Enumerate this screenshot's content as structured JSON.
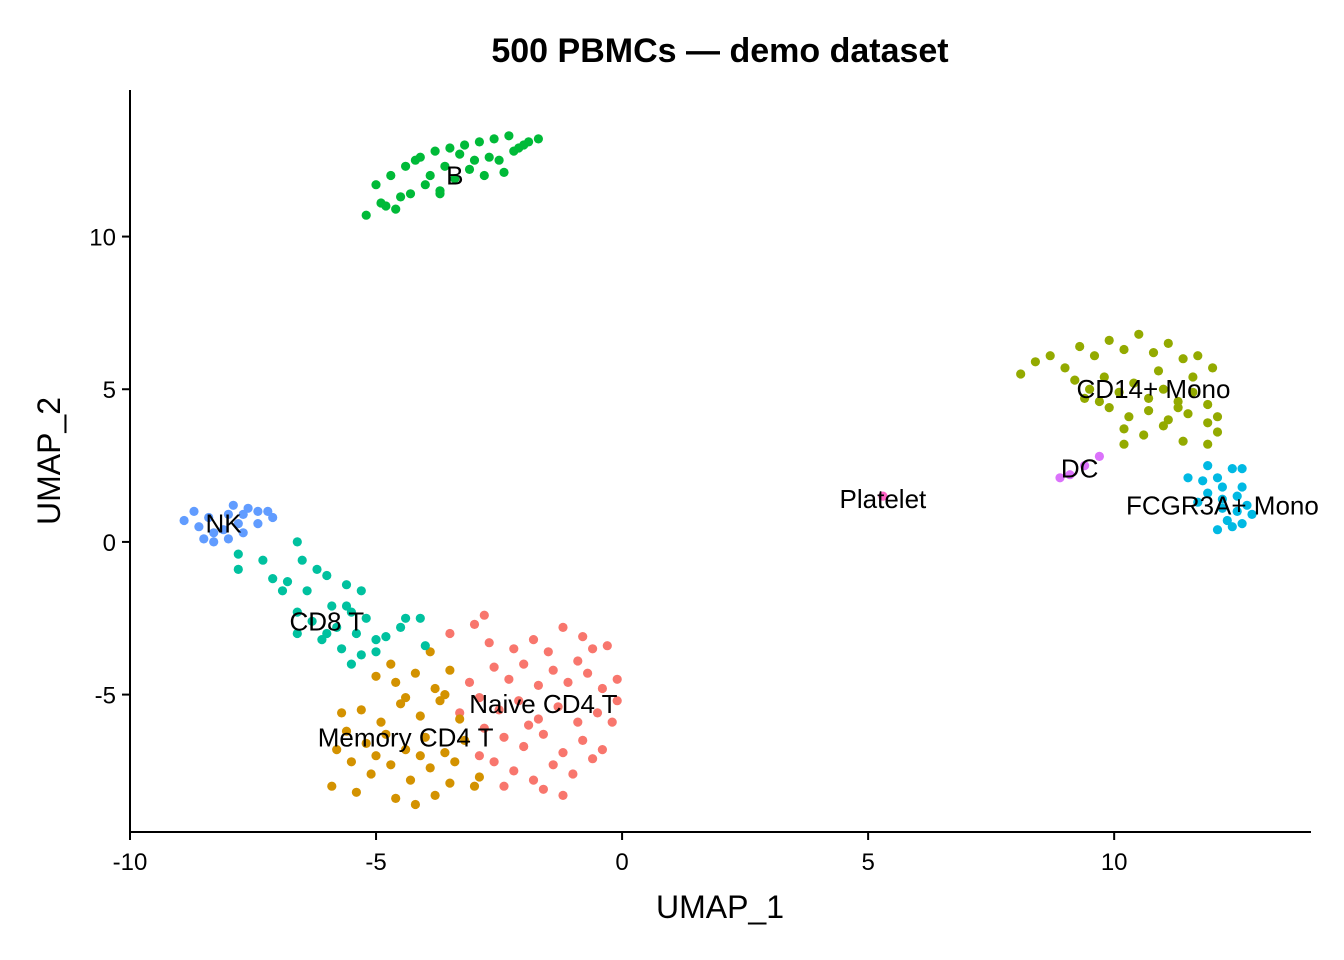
{
  "chart_data": {
    "type": "scatter",
    "title": "500 PBMCs — demo dataset",
    "xlabel": "UMAP_1",
    "ylabel": "UMAP_2",
    "xlim": [
      -10,
      14
    ],
    "ylim": [
      -9.5,
      14.8
    ],
    "xticks": [
      -10,
      -5,
      0,
      5,
      10
    ],
    "yticks": [
      -5,
      0,
      5,
      10
    ],
    "grid": false,
    "legend": "none",
    "series": [
      {
        "name": "Naive CD4 T",
        "color": "#F8766D",
        "label": {
          "text": "Naive CD4 T",
          "x": -1.6,
          "y": -5.3
        },
        "points": [
          [
            -3.5,
            -3
          ],
          [
            -3,
            -2.7
          ],
          [
            -2.8,
            -2.4
          ],
          [
            -2.2,
            -3.5
          ],
          [
            -1.8,
            -3.2
          ],
          [
            -1.5,
            -3.6
          ],
          [
            -1.2,
            -2.8
          ],
          [
            -0.8,
            -3.1
          ],
          [
            -0.6,
            -3.5
          ],
          [
            -0.3,
            -3.4
          ],
          [
            -2.6,
            -4.1
          ],
          [
            -2.3,
            -4.5
          ],
          [
            -2,
            -4
          ],
          [
            -1.7,
            -4.7
          ],
          [
            -1.4,
            -4.2
          ],
          [
            -1.1,
            -4.6
          ],
          [
            -0.7,
            -4.3
          ],
          [
            -0.4,
            -4.8
          ],
          [
            -0.1,
            -4.5
          ],
          [
            -2.9,
            -5.1
          ],
          [
            -2.5,
            -5.5
          ],
          [
            -2.1,
            -5.2
          ],
          [
            -1.7,
            -5.8
          ],
          [
            -1.3,
            -5.4
          ],
          [
            -0.9,
            -5.9
          ],
          [
            -0.5,
            -5.6
          ],
          [
            -0.1,
            -5.2
          ],
          [
            -2.8,
            -6.1
          ],
          [
            -2.4,
            -6.4
          ],
          [
            -2,
            -6.7
          ],
          [
            -1.6,
            -6.3
          ],
          [
            -1.2,
            -6.9
          ],
          [
            -0.8,
            -6.5
          ],
          [
            -0.4,
            -6.8
          ],
          [
            -2.6,
            -7.2
          ],
          [
            -2.2,
            -7.5
          ],
          [
            -1.8,
            -7.8
          ],
          [
            -1.4,
            -7.3
          ],
          [
            -1,
            -7.6
          ],
          [
            -0.6,
            -7.1
          ],
          [
            -1.6,
            -8.1
          ],
          [
            -1.2,
            -8.3
          ],
          [
            -2.4,
            -8.0
          ],
          [
            -2.9,
            -7.0
          ],
          [
            -3.1,
            -4.6
          ],
          [
            -3.3,
            -5.6
          ],
          [
            -2.7,
            -3.3
          ],
          [
            -0.2,
            -5.9
          ],
          [
            -0.9,
            -3.9
          ],
          [
            -1.9,
            -6.0
          ]
        ]
      },
      {
        "name": "Memory CD4 T",
        "color": "#D39200",
        "label": {
          "text": "Memory CD4 T",
          "x": -4.4,
          "y": -6.4
        },
        "points": [
          [
            -5,
            -4.4
          ],
          [
            -4.6,
            -4.6
          ],
          [
            -4.2,
            -4.3
          ],
          [
            -3.8,
            -4.8
          ],
          [
            -3.5,
            -4.2
          ],
          [
            -5.3,
            -5.5
          ],
          [
            -4.9,
            -5.9
          ],
          [
            -4.5,
            -5.3
          ],
          [
            -4.1,
            -5.7
          ],
          [
            -3.7,
            -5.2
          ],
          [
            -3.3,
            -5.8
          ],
          [
            -5.6,
            -6.2
          ],
          [
            -5.2,
            -6.6
          ],
          [
            -4.8,
            -6.3
          ],
          [
            -4.4,
            -6.8
          ],
          [
            -4,
            -6.4
          ],
          [
            -3.6,
            -6.9
          ],
          [
            -3.2,
            -6.5
          ],
          [
            -5.5,
            -7.2
          ],
          [
            -5.1,
            -7.6
          ],
          [
            -4.7,
            -7.3
          ],
          [
            -4.3,
            -7.8
          ],
          [
            -3.9,
            -7.4
          ],
          [
            -3.5,
            -7.9
          ],
          [
            -5.9,
            -8.0
          ],
          [
            -5.4,
            -8.2
          ],
          [
            -4.6,
            -8.4
          ],
          [
            -4.2,
            -8.6
          ],
          [
            -3.8,
            -8.3
          ],
          [
            -3.4,
            -7.2
          ],
          [
            -3,
            -8.0
          ],
          [
            -5.7,
            -5.6
          ],
          [
            -4.7,
            -4.0
          ],
          [
            -3.9,
            -3.6
          ],
          [
            -2.9,
            -7.7
          ],
          [
            -5.8,
            -6.8
          ],
          [
            -4.1,
            -7.0
          ],
          [
            -3.6,
            -5.0
          ],
          [
            -5.0,
            -7.0
          ],
          [
            -4.4,
            -5.1
          ]
        ]
      },
      {
        "name": "CD14+ Mono",
        "color": "#93AA00",
        "label": {
          "text": "CD14+ Mono",
          "x": 10.8,
          "y": 5.0
        },
        "points": [
          [
            8.1,
            5.5
          ],
          [
            8.4,
            5.9
          ],
          [
            8.7,
            6.1
          ],
          [
            9,
            5.7
          ],
          [
            9.3,
            6.4
          ],
          [
            9.6,
            6.1
          ],
          [
            9.9,
            6.6
          ],
          [
            10.2,
            6.3
          ],
          [
            10.5,
            6.8
          ],
          [
            10.8,
            6.2
          ],
          [
            11.1,
            6.5
          ],
          [
            11.4,
            6.0
          ],
          [
            11.7,
            6.1
          ],
          [
            12,
            5.7
          ],
          [
            9.2,
            5.3
          ],
          [
            9.5,
            5.0
          ],
          [
            9.8,
            5.4
          ],
          [
            10.1,
            4.9
          ],
          [
            10.4,
            5.2
          ],
          [
            10.7,
            4.7
          ],
          [
            11,
            5.0
          ],
          [
            11.3,
            4.6
          ],
          [
            11.6,
            4.9
          ],
          [
            11.9,
            4.5
          ],
          [
            9.4,
            4.7
          ],
          [
            9.9,
            4.4
          ],
          [
            10.3,
            4.1
          ],
          [
            10.7,
            4.3
          ],
          [
            11.1,
            4.0
          ],
          [
            11.5,
            4.2
          ],
          [
            11.9,
            3.9
          ],
          [
            10.2,
            3.7
          ],
          [
            10.6,
            3.5
          ],
          [
            11,
            3.8
          ],
          [
            11.4,
            3.3
          ],
          [
            11.9,
            3.2
          ],
          [
            12.1,
            3.6
          ],
          [
            10.2,
            3.2
          ],
          [
            11.3,
            4.4
          ],
          [
            9.7,
            4.6
          ],
          [
            10.9,
            5.6
          ],
          [
            11.6,
            5.4
          ],
          [
            12.1,
            4.1
          ]
        ]
      },
      {
        "name": "B",
        "color": "#00BA38",
        "label": {
          "text": "B",
          "x": -3.4,
          "y": 12.0
        },
        "points": [
          [
            -5.2,
            10.7
          ],
          [
            -4.9,
            11.1
          ],
          [
            -4.6,
            10.9
          ],
          [
            -4.3,
            11.4
          ],
          [
            -4,
            11.7
          ],
          [
            -3.7,
            11.4
          ],
          [
            -3.4,
            11.9
          ],
          [
            -3.1,
            12.2
          ],
          [
            -2.8,
            12.0
          ],
          [
            -2.5,
            12.5
          ],
          [
            -2.2,
            12.8
          ],
          [
            -1.9,
            13.1
          ],
          [
            -1.7,
            13.2
          ],
          [
            -5,
            11.7
          ],
          [
            -4.7,
            12.0
          ],
          [
            -4.4,
            12.3
          ],
          [
            -4.1,
            12.6
          ],
          [
            -3.8,
            12.8
          ],
          [
            -3.5,
            12.9
          ],
          [
            -3.2,
            13.0
          ],
          [
            -2.9,
            13.1
          ],
          [
            -2.6,
            13.2
          ],
          [
            -2.3,
            13.3
          ],
          [
            -2.1,
            12.9
          ],
          [
            -4.5,
            11.3
          ],
          [
            -3.6,
            12.3
          ],
          [
            -2.7,
            12.6
          ],
          [
            -4.8,
            11.0
          ],
          [
            -3.9,
            12.0
          ],
          [
            -3.0,
            12.5
          ],
          [
            -2.4,
            12.1
          ],
          [
            -3.7,
            11.5
          ],
          [
            -2.0,
            13.0
          ],
          [
            -4.2,
            12.5
          ],
          [
            -3.3,
            12.7
          ]
        ]
      },
      {
        "name": "CD8 T",
        "color": "#00C19F",
        "label": {
          "text": "CD8 T",
          "x": -6.0,
          "y": -2.6
        },
        "points": [
          [
            -7.8,
            -0.4
          ],
          [
            -7.3,
            -0.6
          ],
          [
            -7.8,
            -0.9
          ],
          [
            -6.6,
            0.0
          ],
          [
            -6.5,
            -0.6
          ],
          [
            -6.2,
            -0.9
          ],
          [
            -6.0,
            -1.1
          ],
          [
            -5.6,
            -1.4
          ],
          [
            -5.3,
            -1.6
          ],
          [
            -7.1,
            -1.2
          ],
          [
            -6.8,
            -1.3
          ],
          [
            -6.4,
            -1.6
          ],
          [
            -5.9,
            -2.1
          ],
          [
            -5.5,
            -2.3
          ],
          [
            -5.2,
            -2.5
          ],
          [
            -6.6,
            -2.3
          ],
          [
            -6.3,
            -2.6
          ],
          [
            -5.8,
            -2.8
          ],
          [
            -5.4,
            -3.0
          ],
          [
            -5.0,
            -3.2
          ],
          [
            -4.8,
            -3.1
          ],
          [
            -6.6,
            -3.0
          ],
          [
            -6.1,
            -3.2
          ],
          [
            -5.7,
            -3.5
          ],
          [
            -5.3,
            -3.7
          ],
          [
            -5.0,
            -3.6
          ],
          [
            -5.5,
            -4.0
          ],
          [
            -4.4,
            -2.5
          ],
          [
            -4.1,
            -2.5
          ],
          [
            -4.5,
            -2.8
          ],
          [
            -4.0,
            -3.4
          ],
          [
            -6.0,
            -3.0
          ],
          [
            -5.6,
            -2.1
          ],
          [
            -6.9,
            -1.6
          ]
        ]
      },
      {
        "name": "FCGR3A+ Mono",
        "color": "#00B9E3",
        "label": {
          "text": "FCGR3A+ Mono",
          "x": 12.2,
          "y": 1.2
        },
        "points": [
          [
            11.5,
            2.1
          ],
          [
            11.8,
            2.0
          ],
          [
            12.1,
            2.1
          ],
          [
            12.4,
            2.4
          ],
          [
            12.6,
            2.4
          ],
          [
            11.9,
            1.6
          ],
          [
            12.2,
            1.4
          ],
          [
            12.5,
            1.5
          ],
          [
            11.9,
            2.5
          ],
          [
            12.2,
            1.1
          ],
          [
            12.5,
            1.0
          ],
          [
            12.8,
            0.9
          ],
          [
            12.3,
            0.7
          ],
          [
            12.6,
            0.6
          ],
          [
            12.2,
            1.8
          ],
          [
            12.6,
            1.8
          ],
          [
            12.4,
            0.5
          ],
          [
            12.7,
            1.2
          ],
          [
            11.7,
            1.3
          ],
          [
            12.1,
            0.4
          ]
        ]
      },
      {
        "name": "NK",
        "color": "#619CFF",
        "label": {
          "text": "NK",
          "x": -8.1,
          "y": 0.6
        },
        "points": [
          [
            -8.9,
            0.7
          ],
          [
            -8.6,
            0.5
          ],
          [
            -8.3,
            0.3
          ],
          [
            -8,
            0.1
          ],
          [
            -7.7,
            0.3
          ],
          [
            -7.4,
            0.6
          ],
          [
            -7.1,
            0.8
          ],
          [
            -7.4,
            1.0
          ],
          [
            -7.7,
            0.9
          ],
          [
            -8.0,
            0.9
          ],
          [
            -8.7,
            1.0
          ],
          [
            -8.4,
            0.8
          ],
          [
            -7.9,
            1.2
          ],
          [
            -7.6,
            1.1
          ],
          [
            -7.2,
            1.0
          ],
          [
            -8.1,
            0.4
          ],
          [
            -8.5,
            0.1
          ],
          [
            -8.3,
            0.0
          ],
          [
            -7.8,
            0.6
          ]
        ]
      },
      {
        "name": "DC",
        "color": "#DB72FB",
        "label": {
          "text": "DC",
          "x": 9.3,
          "y": 2.4
        },
        "points": [
          [
            8.9,
            2.1
          ],
          [
            9.1,
            2.2
          ],
          [
            9.7,
            2.8
          ],
          [
            9.4,
            2.5
          ]
        ]
      },
      {
        "name": "Platelet",
        "color": "#FF61C3",
        "label": {
          "text": "Platelet",
          "x": 5.3,
          "y": 1.4
        },
        "points": [
          [
            5.3,
            1.5
          ]
        ]
      }
    ]
  }
}
